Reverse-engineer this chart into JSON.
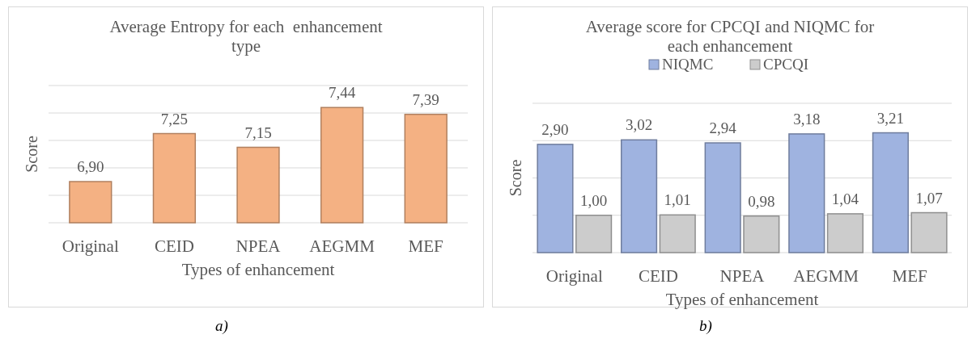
{
  "chart_data": [
    {
      "type": "bar",
      "title": "Average Entropy for each  enhancement type",
      "xlabel": "Types of enhancement",
      "ylabel": "Score",
      "categories": [
        "Original",
        "CEID",
        "NPEA",
        "AEGMM",
        "MEF"
      ],
      "series": [
        {
          "color": "#f4b183",
          "values": [
            6.9,
            7.25,
            7.15,
            7.44,
            7.39
          ],
          "value_labels": [
            "6,90",
            "7,25",
            "7,15",
            "7,44",
            "7,39"
          ]
        }
      ],
      "ylim": [
        6.6,
        7.6
      ],
      "yticks": [
        {
          "value": 6.6,
          "label": null
        },
        {
          "value": 6.8,
          "label": null
        },
        {
          "value": 7.0,
          "label": null
        },
        {
          "value": 7.2,
          "label": null
        },
        {
          "value": 7.4,
          "label": null
        },
        {
          "value": 7.6,
          "label": null
        }
      ],
      "tick_labels": "x",
      "grid": "y",
      "legend": false,
      "annotations": [
        "a)"
      ]
    },
    {
      "type": "bar",
      "title": "Average score for CPCQI and NIQMC for each enhancement",
      "xlabel": "Types of enhancement",
      "ylabel": "Score",
      "categories": [
        "Original",
        "CEID",
        "NPEA",
        "AEGMM",
        "MEF"
      ],
      "series": [
        {
          "name": "NIQMC",
          "color": "#9fb3e0",
          "values": [
            2.9,
            3.02,
            2.94,
            3.18,
            3.21
          ],
          "value_labels": [
            "2,90",
            "3,02",
            "2,94",
            "3,18",
            "3,21"
          ]
        },
        {
          "name": "CPCQI",
          "color": "#cccccc",
          "values": [
            1.0,
            1.01,
            0.98,
            1.04,
            1.07
          ],
          "value_labels": [
            "1,00",
            "1,01",
            "0,98",
            "1,04",
            "1,07"
          ]
        }
      ],
      "ylim": [
        0,
        4
      ],
      "yticks": [
        {
          "value": 0,
          "label": null
        },
        {
          "value": 1,
          "label": null
        },
        {
          "value": 2,
          "label": null
        },
        {
          "value": 3,
          "label": null
        },
        {
          "value": 4,
          "label": null
        }
      ],
      "tick_labels": "x",
      "grid": "y",
      "legend": "top",
      "annotations": [
        "b)"
      ]
    }
  ]
}
